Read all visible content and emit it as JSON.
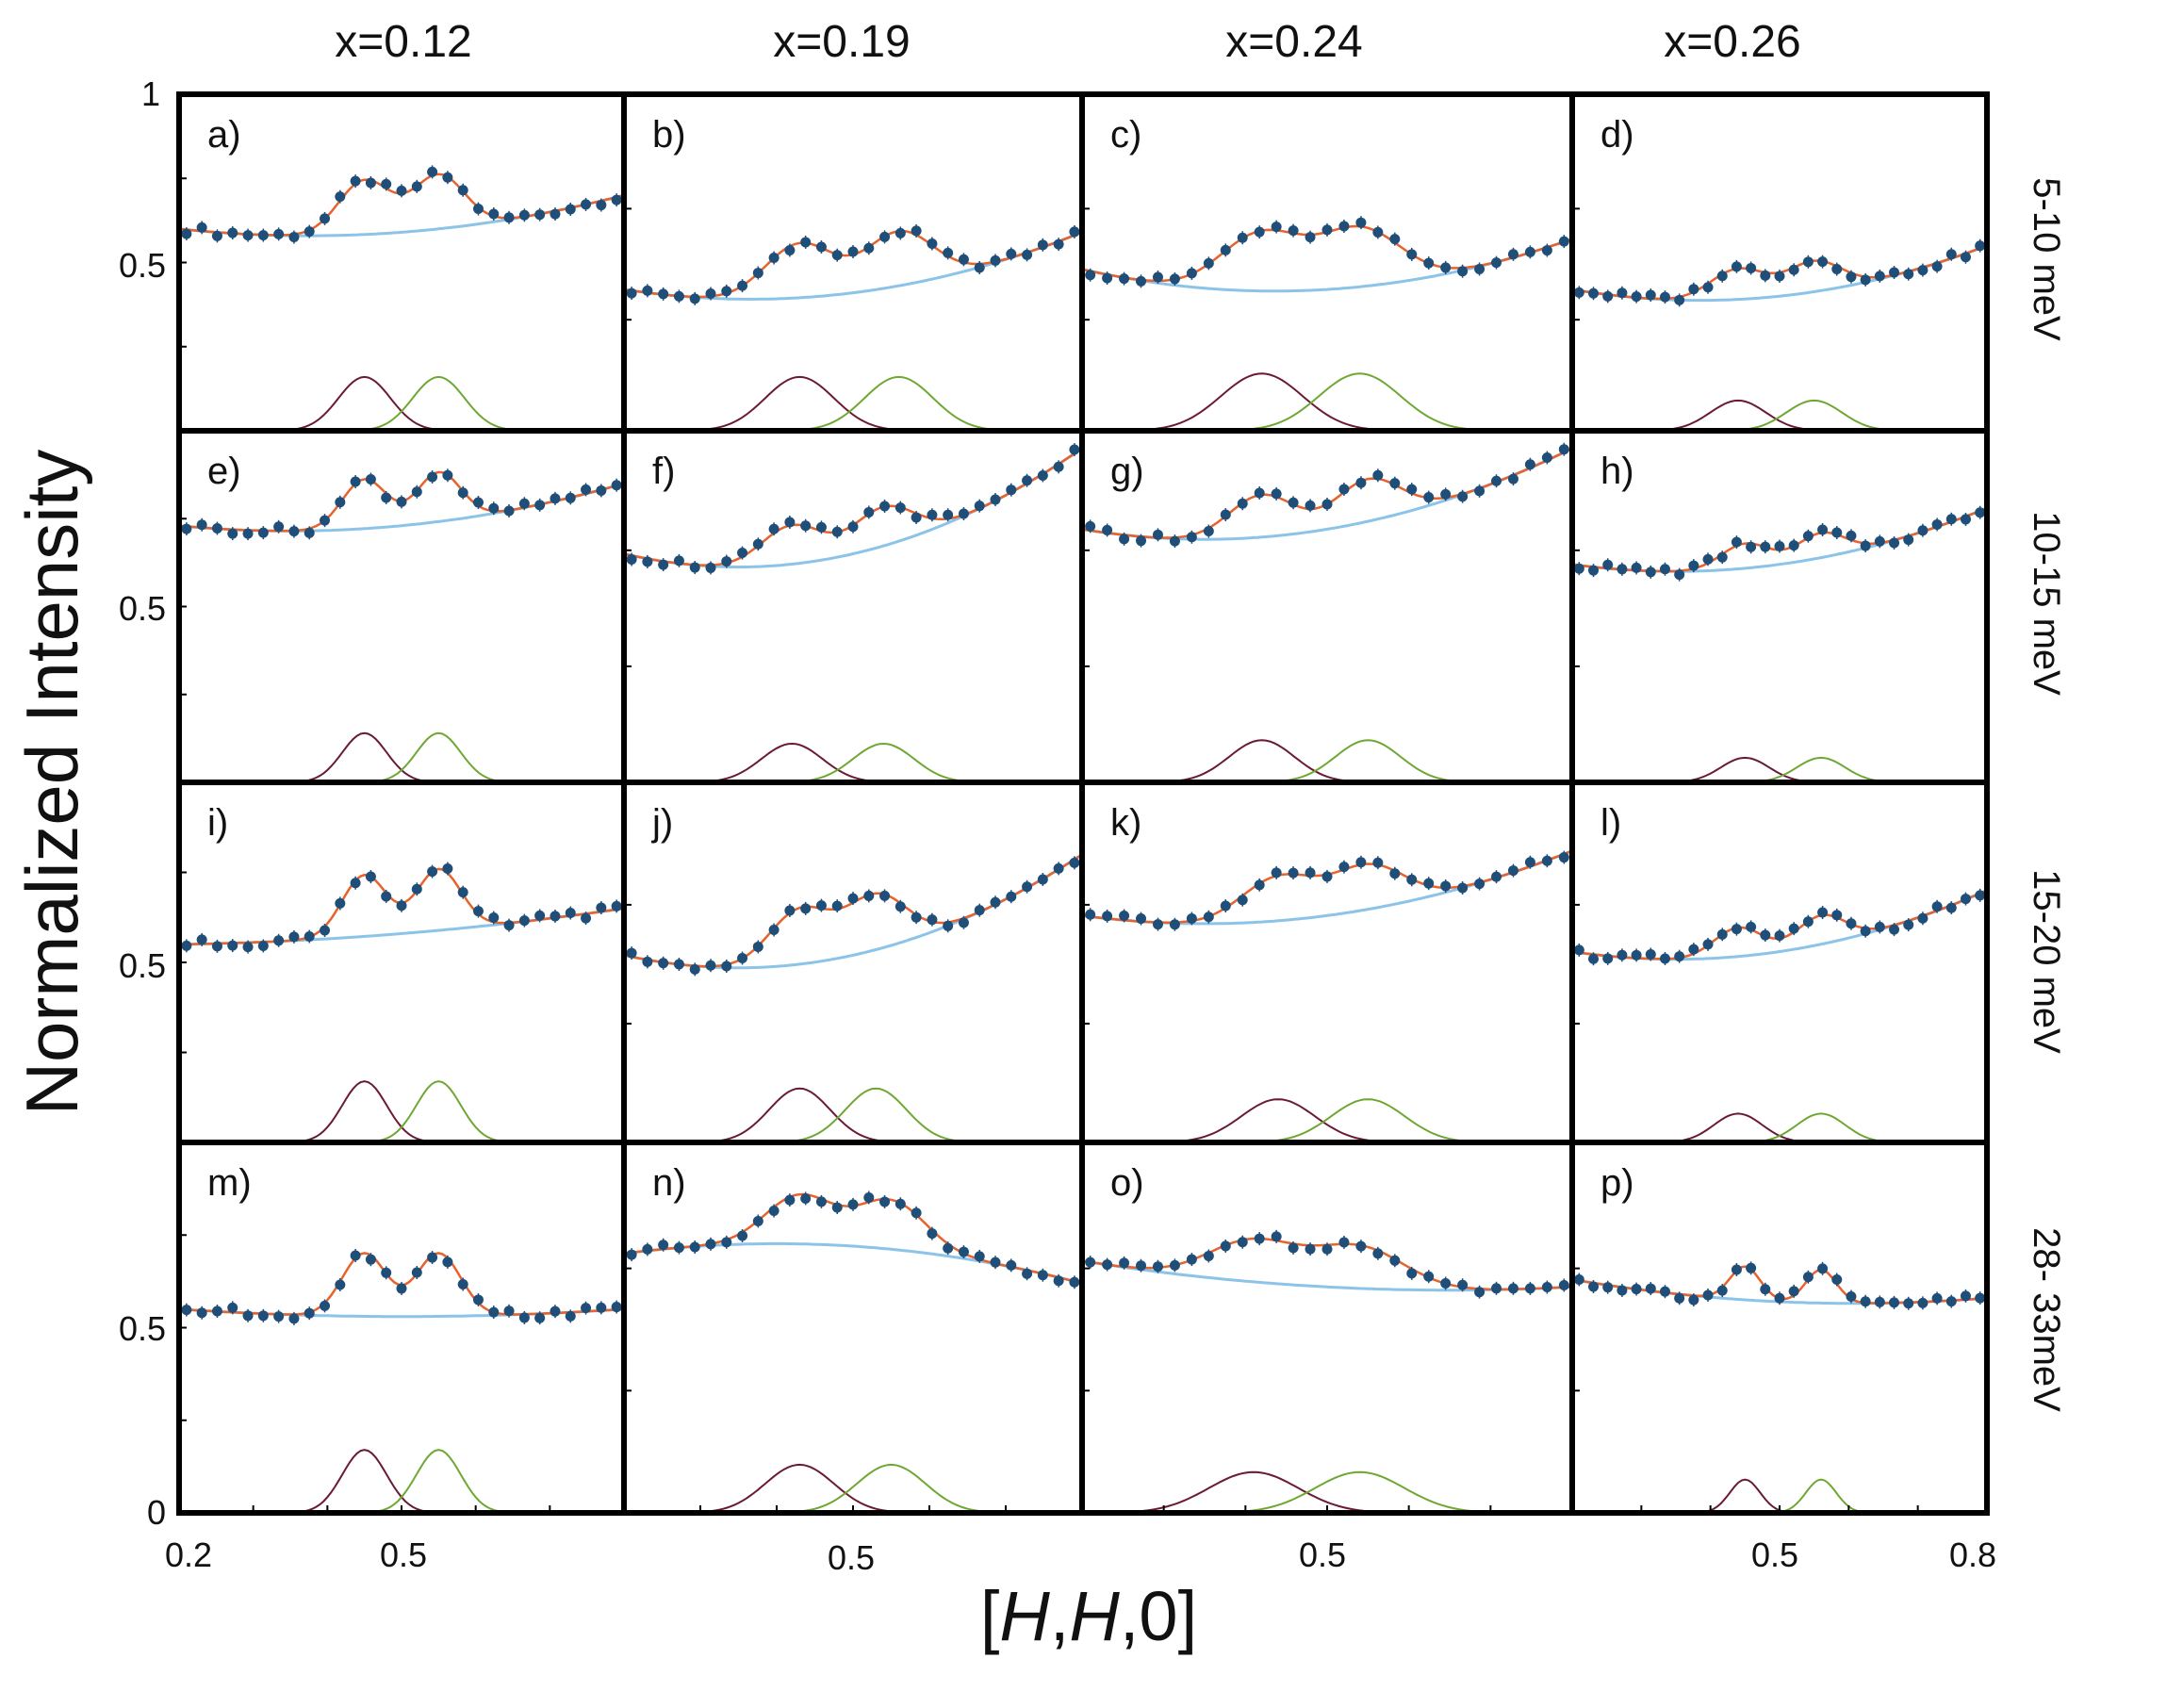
{
  "chart_data": {
    "type": "scatter",
    "title": "",
    "xlabel_parts": [
      "[",
      "H",
      ",",
      "H",
      ",0]"
    ],
    "ylabel": "Normalized Intensity",
    "columns": [
      "x=0.12",
      "x=0.19",
      "x=0.24",
      "x=0.26"
    ],
    "rows": [
      "5-10 meV",
      "10-15 meV",
      "15-20 meV",
      "28- 33meV"
    ],
    "xlim": [
      0.2,
      0.8
    ],
    "ylim": [
      0,
      1
    ],
    "y_tick_labels": {
      "top": "1",
      "half": "0.5",
      "zero": "0"
    },
    "x_tick_labels": {
      "left": "0.2",
      "mid": "0.5",
      "right": "0.8"
    },
    "colors": {
      "data": "#1f4e79",
      "fit": "#e8622c",
      "background": "#8cc3e8",
      "peak1": "#6b1a35",
      "peak2": "#6ea832",
      "frame": "#000000"
    },
    "panels": [
      {
        "label": "a)",
        "row": 0,
        "col": 0,
        "bg": [
          0.6,
          0.59,
          0.7
        ],
        "peaks": [
          [
            0.45,
            0.16,
            0.035
          ],
          [
            0.55,
            0.16,
            0.035
          ]
        ]
      },
      {
        "label": "b)",
        "row": 0,
        "col": 1,
        "bg": [
          0.42,
          0.41,
          0.59
        ],
        "peaks": [
          [
            0.43,
            0.16,
            0.045
          ],
          [
            0.56,
            0.16,
            0.045
          ]
        ]
      },
      {
        "label": "c)",
        "row": 0,
        "col": 2,
        "bg": [
          0.48,
          0.42,
          0.57
        ],
        "peaks": [
          [
            0.42,
            0.17,
            0.05
          ],
          [
            0.54,
            0.17,
            0.05
          ]
        ]
      },
      {
        "label": "d)",
        "row": 0,
        "col": 3,
        "bg": [
          0.42,
          0.4,
          0.55
        ],
        "peaks": [
          [
            0.44,
            0.09,
            0.04
          ],
          [
            0.55,
            0.09,
            0.04
          ]
        ]
      },
      {
        "label": "e)",
        "row": 1,
        "col": 0,
        "bg": [
          0.73,
          0.73,
          0.85
        ],
        "peaks": [
          [
            0.45,
            0.14,
            0.03
          ],
          [
            0.55,
            0.14,
            0.03
          ]
        ]
      },
      {
        "label": "f)",
        "row": 1,
        "col": 1,
        "bg": [
          0.65,
          0.65,
          0.95
        ],
        "peaks": [
          [
            0.42,
            0.11,
            0.04
          ],
          [
            0.54,
            0.11,
            0.04
          ]
        ]
      },
      {
        "label": "g)",
        "row": 1,
        "col": 2,
        "bg": [
          0.72,
          0.72,
          0.95
        ],
        "peaks": [
          [
            0.42,
            0.12,
            0.04
          ],
          [
            0.55,
            0.12,
            0.04
          ]
        ]
      },
      {
        "label": "h)",
        "row": 1,
        "col": 3,
        "bg": [
          0.62,
          0.62,
          0.78
        ],
        "peaks": [
          [
            0.45,
            0.07,
            0.035
          ],
          [
            0.56,
            0.07,
            0.035
          ]
        ]
      },
      {
        "label": "i)",
        "row": 2,
        "col": 0,
        "bg": [
          0.55,
          0.58,
          0.65
        ],
        "peaks": [
          [
            0.45,
            0.17,
            0.03
          ],
          [
            0.55,
            0.17,
            0.03
          ]
        ]
      },
      {
        "label": "j)",
        "row": 2,
        "col": 1,
        "bg": [
          0.52,
          0.52,
          0.8
        ],
        "peaks": [
          [
            0.43,
            0.15,
            0.04
          ],
          [
            0.53,
            0.15,
            0.04
          ]
        ]
      },
      {
        "label": "k)",
        "row": 2,
        "col": 2,
        "bg": [
          0.63,
          0.63,
          0.81
        ],
        "peaks": [
          [
            0.44,
            0.12,
            0.045
          ],
          [
            0.55,
            0.12,
            0.045
          ]
        ]
      },
      {
        "label": "l)",
        "row": 2,
        "col": 3,
        "bg": [
          0.53,
          0.53,
          0.7
        ],
        "peaks": [
          [
            0.44,
            0.08,
            0.035
          ],
          [
            0.56,
            0.08,
            0.035
          ]
        ]
      },
      {
        "label": "m)",
        "row": 3,
        "col": 0,
        "bg": [
          0.55,
          0.53,
          0.55
        ],
        "peaks": [
          [
            0.45,
            0.17,
            0.03
          ],
          [
            0.55,
            0.17,
            0.03
          ]
        ]
      },
      {
        "label": "n)",
        "row": 3,
        "col": 1,
        "bg": [
          0.7,
          0.72,
          0.62
        ],
        "peaks": [
          [
            0.43,
            0.13,
            0.045
          ],
          [
            0.55,
            0.13,
            0.045
          ]
        ]
      },
      {
        "label": "o)",
        "row": 3,
        "col": 2,
        "bg": [
          0.68,
          0.61,
          0.61
        ],
        "peaks": [
          [
            0.41,
            0.11,
            0.055
          ],
          [
            0.54,
            0.11,
            0.055
          ]
        ]
      },
      {
        "label": "p)",
        "row": 3,
        "col": 3,
        "bg": [
          0.63,
          0.57,
          0.58
        ],
        "peaks": [
          [
            0.45,
            0.09,
            0.022
          ],
          [
            0.56,
            0.09,
            0.022
          ]
        ]
      }
    ]
  }
}
